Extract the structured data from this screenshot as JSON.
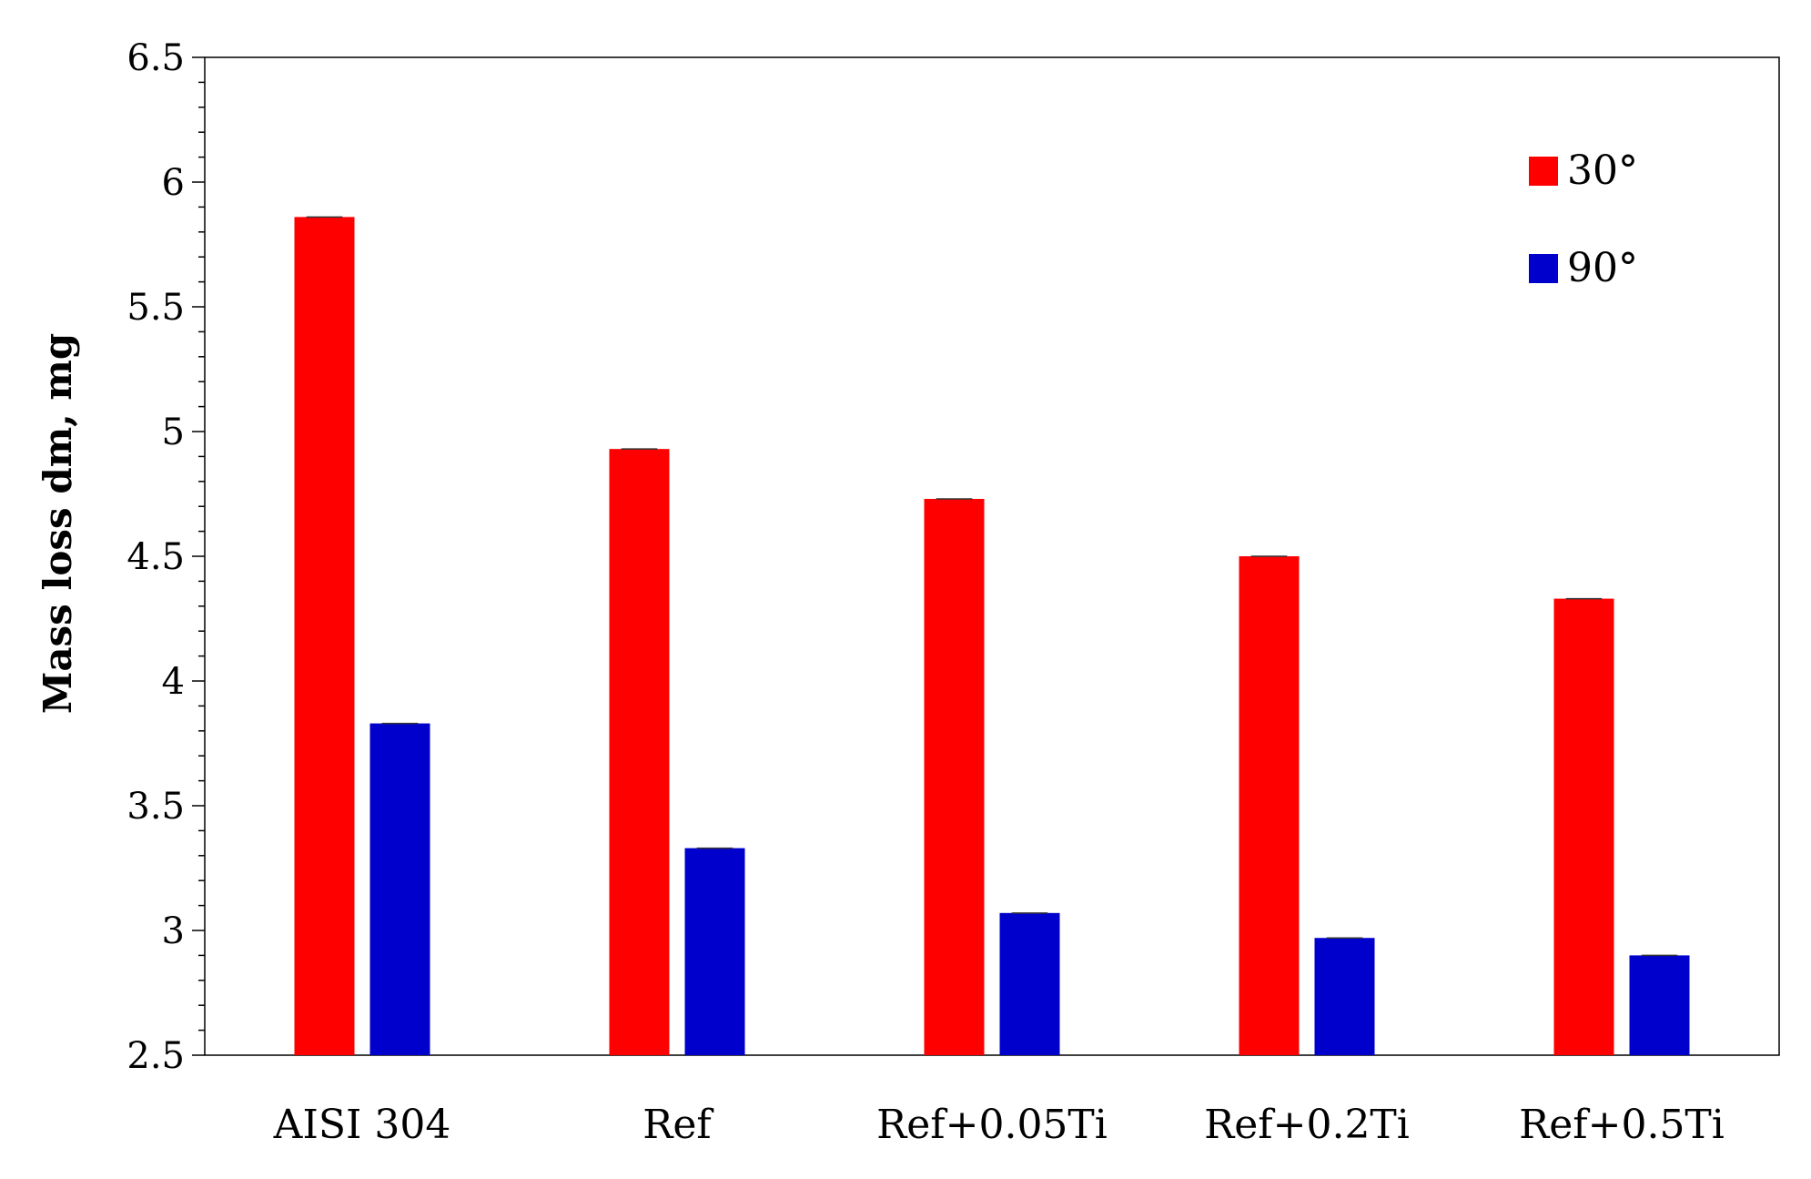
{
  "chart_data": {
    "type": "bar",
    "ylabel": "Mass loss dm, mg",
    "xlabel": "",
    "ylim": [
      2.5,
      6.5
    ],
    "ytick_step": 0.5,
    "ytick_labels": [
      "2.5",
      "3",
      "3.5",
      "4",
      "4.5",
      "5",
      "5.5",
      "6",
      "6.5"
    ],
    "minor_ticks_per_major": 5,
    "grid": false,
    "legend_position": "top-right",
    "categories": [
      "AISI 304",
      "Ref",
      "Ref+0.05Ti",
      "Ref+0.2Ti",
      "Ref+0.5Ti"
    ],
    "series": [
      {
        "name": "30°",
        "color": "#ff0000",
        "values": [
          5.86,
          4.93,
          4.73,
          4.5,
          4.33
        ]
      },
      {
        "name": "90°",
        "color": "#0000cc",
        "values": [
          3.83,
          3.33,
          3.07,
          2.97,
          2.9
        ]
      }
    ]
  }
}
